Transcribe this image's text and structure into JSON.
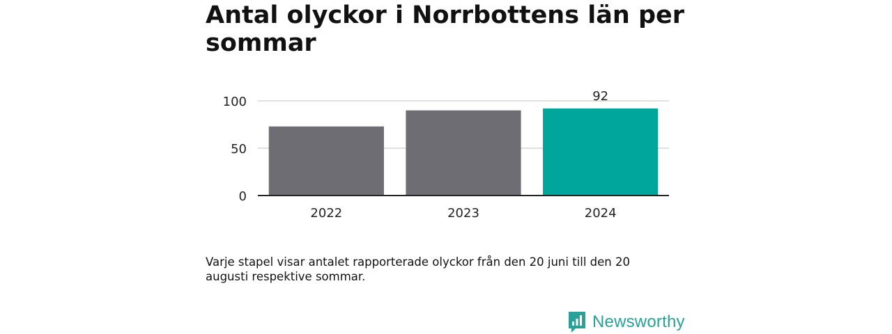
{
  "chart_data": {
    "type": "bar",
    "title": "Antal olyckor i Norrbottens län per sommar",
    "categories": [
      "2022",
      "2023",
      "2024"
    ],
    "values": [
      73,
      90,
      92
    ],
    "highlight_index": 2,
    "data_labels": {
      "2024": "92"
    },
    "yticks": [
      0,
      50,
      100
    ],
    "ylim": [
      0,
      100
    ],
    "grid": true,
    "colors": {
      "bar": "#6e6d73",
      "highlight": "#00a69c",
      "grid": "#d6d6d6",
      "axis": "#222222"
    }
  },
  "caption": "Varje stapel visar antalet rapporterade olyckor från den 20 juni till den 20 augusti respektive sommar.",
  "brand": {
    "name": "Newsworthy",
    "icon": "newsworthy-logo-icon",
    "color": "#2aa198"
  }
}
